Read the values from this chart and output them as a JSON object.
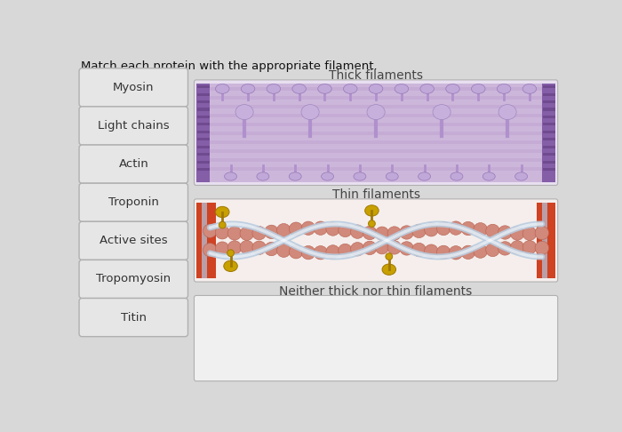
{
  "title": "Match each protein with the appropriate filament.",
  "proteins": [
    "Myosin",
    "Light chains",
    "Actin",
    "Troponin",
    "Active sites",
    "Tropomyosin",
    "Titin"
  ],
  "categories": [
    "Thick filaments",
    "Thin filaments",
    "Neither thick nor thin filaments"
  ],
  "bg_color": "#d8d8d8",
  "box_facecolor": "#e6e6e6",
  "box_edgecolor": "#b0b0b0",
  "category_color": "#444444",
  "protein_color": "#333333",
  "thick_main": "#c8b0d8",
  "thick_dark": "#7a50a0",
  "thick_head": "#c0a8d8",
  "thin_bead": "#d0897a",
  "thin_bead_edge": "#b86050",
  "thin_stripe": "#b8cce0",
  "thin_red": "#cc3311",
  "troponin": "#c8a000",
  "troponin_edge": "#a07800",
  "neither_bg": "#f0f0f0",
  "thick_bg": "#e8e0f0",
  "thin_bg": "#f5eeec"
}
